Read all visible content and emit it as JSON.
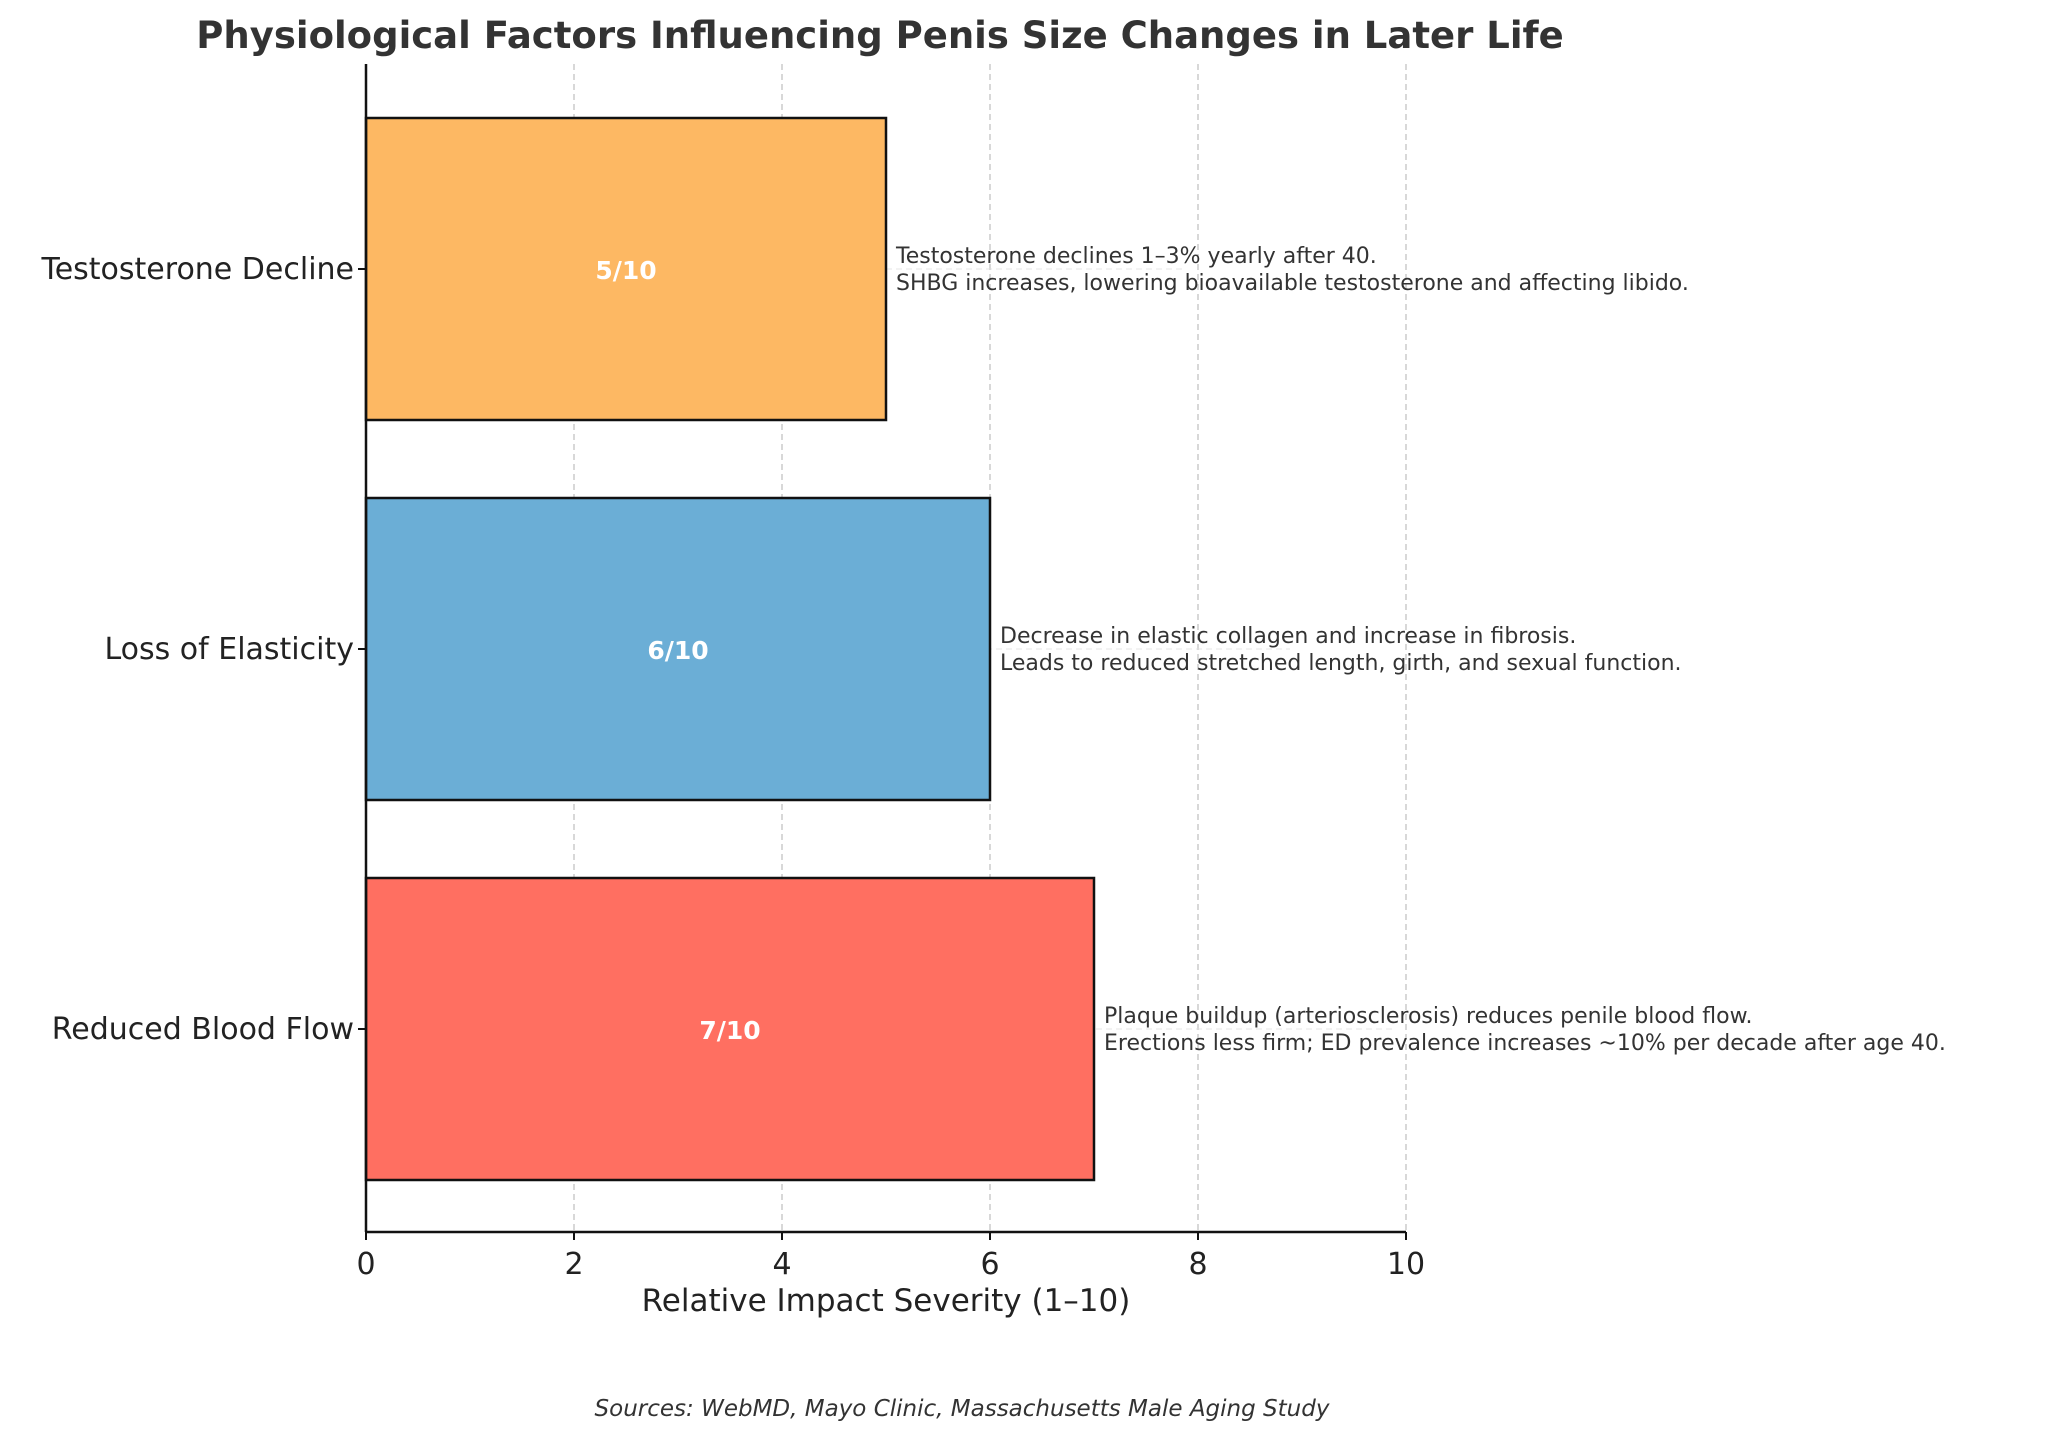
{
  "chart_data": {
    "type": "bar",
    "orientation": "horizontal",
    "title": "Physiological Factors Influencing Penis Size Changes in Later Life",
    "xlabel": "Relative Impact Severity (1–10)",
    "ylabel": "",
    "xlim": [
      0,
      10
    ],
    "x_ticks": [
      0,
      2,
      4,
      6,
      8,
      10
    ],
    "grid": "vertical dashed",
    "categories": [
      "Reduced Blood Flow",
      "Loss of Elasticity",
      "Testosterone Decline"
    ],
    "values": [
      7,
      6,
      5
    ],
    "value_labels": [
      "7/10",
      "6/10",
      "5/10"
    ],
    "colors": [
      "#ff6f61",
      "#6baed6",
      "#fdb863"
    ],
    "annotations": [
      [
        "Plaque buildup (arteriosclerosis) reduces penile blood flow.",
        "Erections less firm; ED prevalence increases ~10% per decade after age 40."
      ],
      [
        "Decrease in elastic collagen and increase in fibrosis.",
        "Leads to reduced stretched length, girth, and sexual function."
      ],
      [
        "Testosterone declines 1–3% yearly after 40.",
        "SHBG increases, lowering bioavailable testosterone and affecting libido."
      ]
    ],
    "footnote": "Sources: WebMD, Mayo Clinic, Massachusetts Male Aging Study"
  }
}
